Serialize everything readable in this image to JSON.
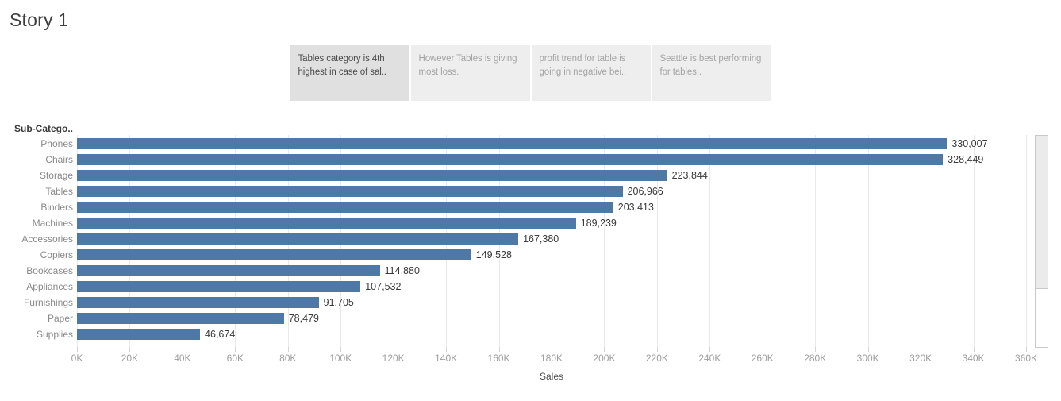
{
  "story": {
    "title": "Story 1",
    "points": [
      {
        "label": "Tables category is 4th highest in case of sal..",
        "active": true
      },
      {
        "label": "However Tables is giving most loss.",
        "active": false
      },
      {
        "label": "profit trend for table is going in negative bei..",
        "active": false
      },
      {
        "label": "Seattle is best performing for tables..",
        "active": false
      }
    ]
  },
  "chart_data": {
    "type": "bar",
    "orientation": "horizontal",
    "column_header": "Sub-Catego..",
    "xlabel": "Sales",
    "categories": [
      "Phones",
      "Chairs",
      "Storage",
      "Tables",
      "Binders",
      "Machines",
      "Accessories",
      "Copiers",
      "Bookcases",
      "Appliances",
      "Furnishings",
      "Paper",
      "Supplies"
    ],
    "values": [
      330007,
      328449,
      223844,
      206966,
      203413,
      189239,
      167380,
      149528,
      114880,
      107532,
      91705,
      78479,
      46674
    ],
    "value_labels": [
      "330,007",
      "328,449",
      "223,844",
      "206,966",
      "203,413",
      "189,239",
      "167,380",
      "149,528",
      "114,880",
      "107,532",
      "91,705",
      "78,479",
      "46,674"
    ],
    "xlim": [
      0,
      360000
    ],
    "x_ticks": [
      "0K",
      "20K",
      "40K",
      "60K",
      "80K",
      "100K",
      "120K",
      "140K",
      "160K",
      "180K",
      "200K",
      "220K",
      "240K",
      "260K",
      "280K",
      "300K",
      "320K",
      "340K",
      "360K"
    ],
    "grid": true,
    "legend": "none",
    "bar_color": "#4e79a7"
  },
  "colors": {
    "bar": "#4e79a7",
    "caption_active_bg": "#e0e0e0",
    "caption_inactive_bg": "#eeeeee",
    "gridline": "#e9e9e9"
  }
}
